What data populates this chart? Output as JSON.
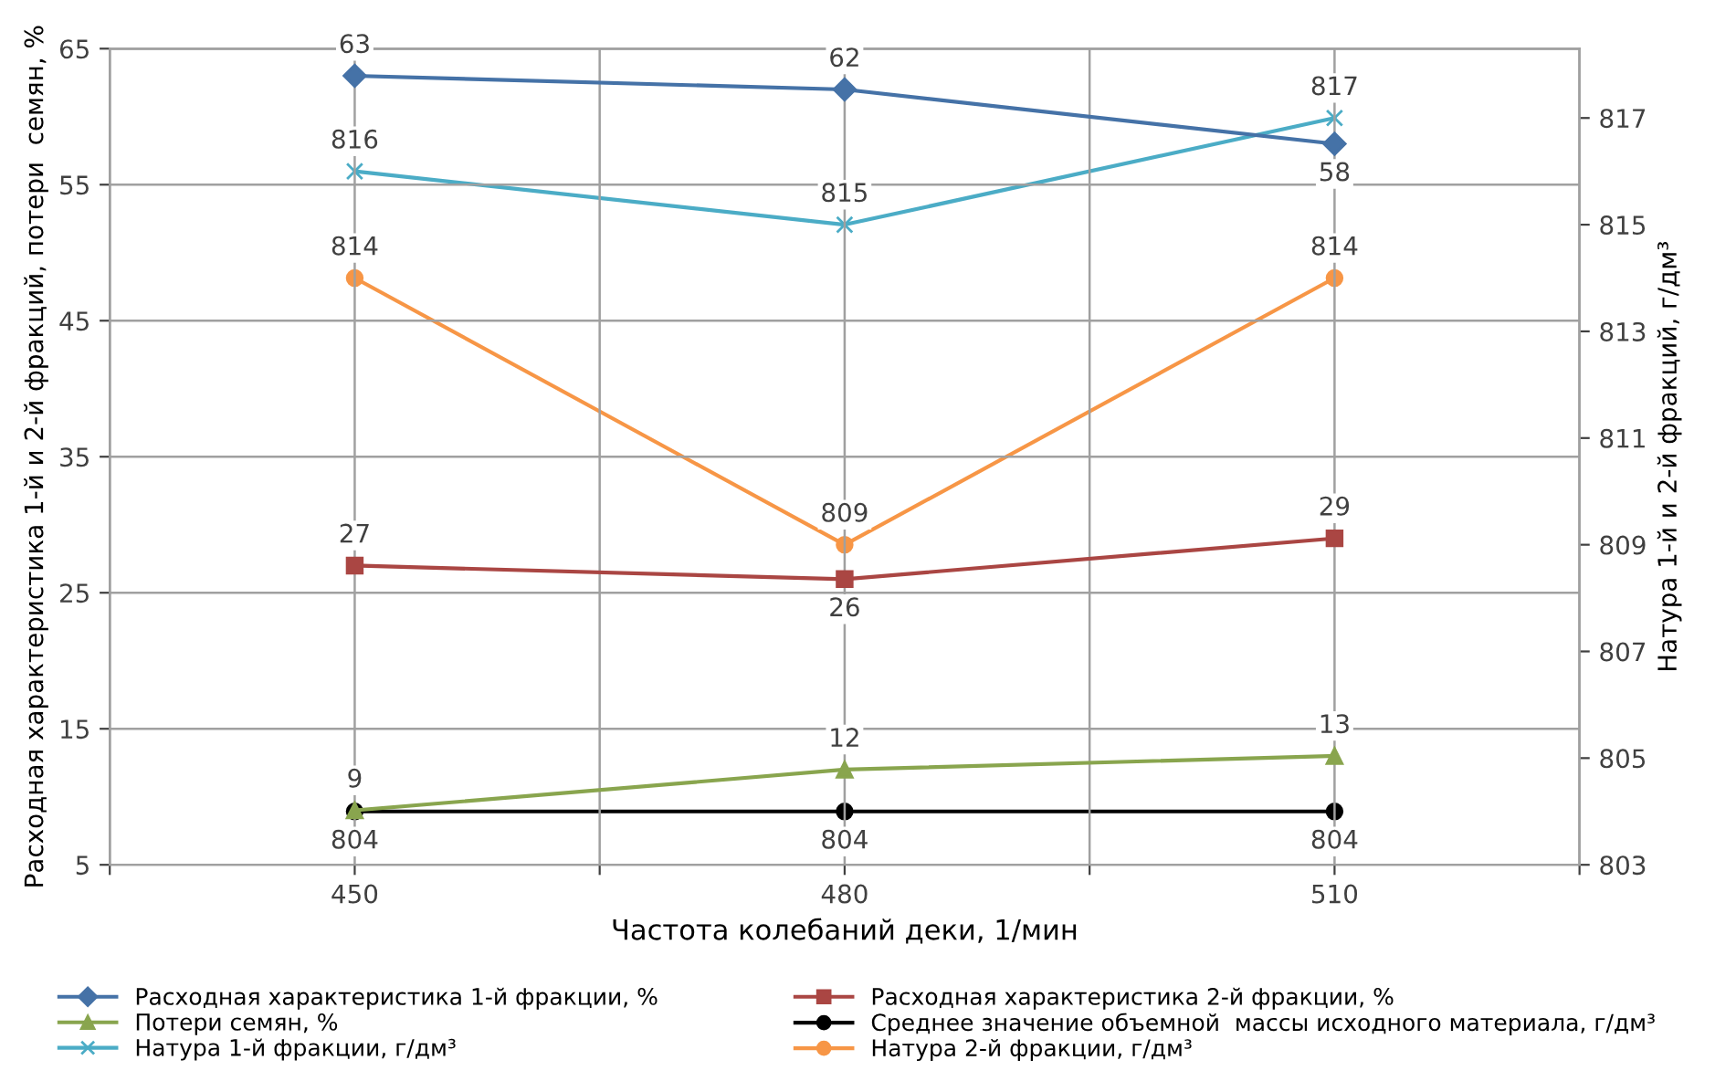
{
  "chart_data": {
    "type": "line",
    "xlabel": "Частота колебаний деки, 1/мин",
    "ylabel": "Расходная характеристика 1-й и 2-й фракций, потери  семян, %",
    "y2label": "Натура 1-й и 2-й фракций, г/дм³",
    "x": [
      450,
      480,
      510
    ],
    "xlim": [
      435,
      525
    ],
    "xticks": [
      {
        "value": 435,
        "label": null
      },
      450,
      {
        "value": 465,
        "label": null
      },
      480,
      {
        "value": 495,
        "label": null
      },
      510,
      {
        "value": 525,
        "label": null
      }
    ],
    "ylim": [
      5,
      65
    ],
    "yticks": [
      5,
      15,
      25,
      35,
      45,
      55,
      65
    ],
    "y2lim": [
      803,
      818.3
    ],
    "y2ticks": [
      803,
      805,
      807,
      809,
      811,
      813,
      815,
      817
    ],
    "grid": true,
    "legend": "bottom",
    "data_labels": true,
    "series": [
      {
        "name": "Расходная характеристика 1-й фракции, %",
        "color": "#4572a7",
        "marker": "diamond",
        "values": [
          63,
          62,
          58
        ]
      },
      {
        "name": "Расходная характеристика 2-й фракции, %",
        "color": "#aa4643",
        "marker": "square",
        "values": [
          27,
          26,
          29
        ]
      },
      {
        "name": "Потери семян, %",
        "color": "#89a54e",
        "marker": "triangle",
        "values": [
          9,
          12,
          13
        ]
      },
      {
        "name": "Среднее значение объемной  массы исходного материала, г/дм³",
        "color": "#000000",
        "marker": "circle",
        "axis": "y2",
        "values": [
          804,
          804,
          804
        ]
      },
      {
        "name": "Натура 1-й фракции, г/дм³",
        "color": "#4bacc6",
        "marker": "cross",
        "axis": "y2",
        "values": [
          816,
          815,
          817
        ]
      },
      {
        "name": "Натура 2-й фракции, г/дм³",
        "color": "#f79646",
        "marker": "circle",
        "axis": "y2",
        "values": [
          814,
          809,
          814
        ]
      }
    ]
  }
}
